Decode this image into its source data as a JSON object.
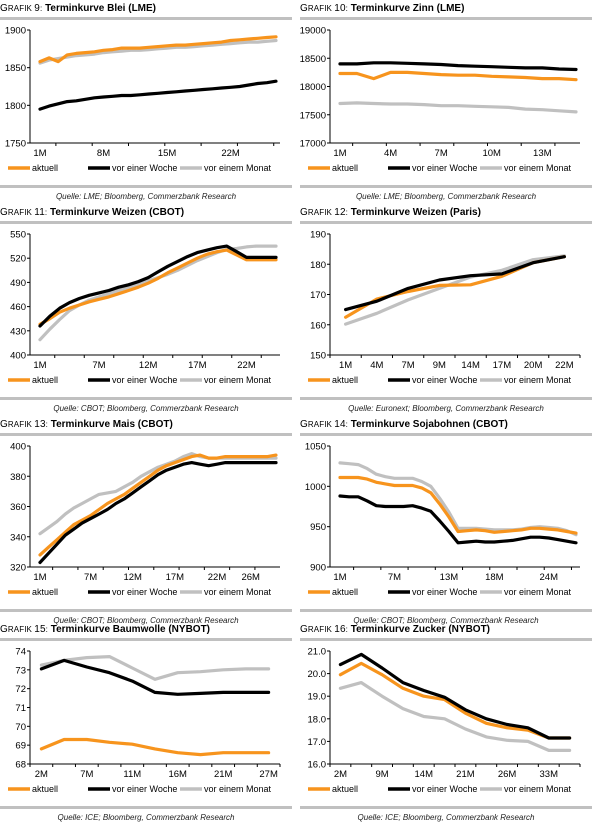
{
  "series_names": [
    "aktuell",
    "vor einer Woche",
    "vor einem Monat"
  ],
  "colors": {
    "aktuell": "#f7941d",
    "woche": "#000000",
    "monat": "#c0c0c0",
    "rule": "#c0c0c0"
  },
  "chart_data": [
    {
      "type": "line",
      "id": "g9",
      "label_prefix": "Grafik",
      "number": "9",
      "title": "Terminkurve Blei (LME)",
      "source": "Quelle: LME; Bloomberg, Commerzbank Research",
      "xlabel": "",
      "ylabel": "",
      "ylim": [
        1750,
        1900
      ],
      "yticks": [
        1750,
        1800,
        1850,
        1900
      ],
      "ytick_labels": [
        "1750",
        "1800",
        "1850",
        "1900"
      ],
      "n_points": 27,
      "xticks": [
        {
          "index": 0,
          "label": "1M"
        },
        {
          "index": 7,
          "label": "8M"
        },
        {
          "index": 14,
          "label": "15M"
        },
        {
          "index": 21,
          "label": "22M"
        }
      ],
      "legend": "bottom",
      "series": [
        {
          "name": "aktuell",
          "values": [
            1858,
            1863,
            1858,
            1867,
            1869,
            1870,
            1871,
            1873,
            1874,
            1876,
            1876,
            1876,
            1877,
            1878,
            1879,
            1880,
            1880,
            1881,
            1882,
            1883,
            1884,
            1886,
            1887,
            1888,
            1889,
            1890,
            1891
          ]
        },
        {
          "name": "vor einer Woche",
          "values": [
            1795,
            1799,
            1802,
            1805,
            1806,
            1808,
            1810,
            1811,
            1812,
            1813,
            1813,
            1814,
            1815,
            1816,
            1817,
            1818,
            1819,
            1820,
            1821,
            1822,
            1823,
            1824,
            1825,
            1827,
            1829,
            1830,
            1832
          ]
        },
        {
          "name": "vor einem Monat",
          "values": [
            1856,
            1860,
            1862,
            1864,
            1866,
            1867,
            1868,
            1870,
            1871,
            1872,
            1873,
            1873,
            1874,
            1875,
            1876,
            1877,
            1877,
            1878,
            1879,
            1880,
            1881,
            1882,
            1883,
            1884,
            1884,
            1885,
            1886
          ]
        }
      ]
    },
    {
      "type": "line",
      "id": "g10",
      "label_prefix": "Grafik",
      "number": "10",
      "title": "Terminkurve Zinn (LME)",
      "source": "Quelle: LME; Bloomberg, Commerzbank Research",
      "xlabel": "",
      "ylabel": "",
      "ylim": [
        17000,
        19000
      ],
      "yticks": [
        17000,
        17500,
        18000,
        18500,
        19000
      ],
      "ytick_labels": [
        "17000",
        "17500",
        "18000",
        "18500",
        "19000"
      ],
      "n_points": 15,
      "xticks": [
        {
          "index": 0,
          "label": "1M"
        },
        {
          "index": 3,
          "label": "4M"
        },
        {
          "index": 6,
          "label": "7M"
        },
        {
          "index": 9,
          "label": "10M"
        },
        {
          "index": 12,
          "label": "13M"
        }
      ],
      "legend": "bottom",
      "series": [
        {
          "name": "aktuell",
          "values": [
            18230,
            18230,
            18140,
            18250,
            18250,
            18230,
            18210,
            18200,
            18200,
            18180,
            18170,
            18160,
            18140,
            18140,
            18120
          ]
        },
        {
          "name": "vor einer Woche",
          "values": [
            18400,
            18400,
            18420,
            18420,
            18410,
            18400,
            18390,
            18370,
            18360,
            18350,
            18340,
            18330,
            18330,
            18310,
            18300
          ]
        },
        {
          "name": "vor einem Monat",
          "values": [
            17700,
            17710,
            17700,
            17690,
            17690,
            17680,
            17660,
            17660,
            17650,
            17640,
            17630,
            17600,
            17590,
            17570,
            17550
          ]
        }
      ]
    },
    {
      "type": "line",
      "id": "g11",
      "label_prefix": "Grafik",
      "number": "11",
      "title": "Terminkurve Weizen (CBOT)",
      "source": "Quelle: CBOT; Bloomberg, Commerzbank Research",
      "xlabel": "",
      "ylabel": "",
      "ylim": [
        400,
        550
      ],
      "yticks": [
        400,
        430,
        460,
        490,
        520,
        550
      ],
      "ytick_labels": [
        "400",
        "430",
        "460",
        "490",
        "520",
        "550"
      ],
      "n_points": 25,
      "xticks": [
        {
          "index": 0,
          "label": "1M"
        },
        {
          "index": 6,
          "label": "7M"
        },
        {
          "index": 11,
          "label": "12M"
        },
        {
          "index": 16,
          "label": "17M"
        },
        {
          "index": 21,
          "label": "22M"
        }
      ],
      "legend": "bottom",
      "series": [
        {
          "name": "aktuell",
          "values": [
            438,
            445,
            453,
            458,
            462,
            466,
            469,
            472,
            476,
            480,
            484,
            489,
            495,
            502,
            508,
            514,
            520,
            525,
            528,
            530,
            524,
            518,
            518,
            518,
            518
          ]
        },
        {
          "name": "vor einer Woche",
          "values": [
            436,
            448,
            458,
            465,
            470,
            474,
            477,
            480,
            484,
            487,
            491,
            496,
            503,
            510,
            516,
            522,
            527,
            530,
            533,
            535,
            528,
            521,
            521,
            521,
            521
          ]
        },
        {
          "name": "vor einem Monat",
          "values": [
            419,
            432,
            444,
            455,
            462,
            468,
            472,
            476,
            480,
            484,
            488,
            492,
            496,
            500,
            505,
            511,
            517,
            522,
            527,
            531,
            532,
            534,
            535,
            535,
            535
          ]
        }
      ]
    },
    {
      "type": "line",
      "id": "g12",
      "label_prefix": "Grafik",
      "number": "12",
      "title": "Terminkurve Weizen (Paris)",
      "source": "Quelle: Euronext; Bloomberg, Commerzbank Research",
      "xlabel": "",
      "ylabel": "",
      "ylim": [
        150,
        190
      ],
      "yticks": [
        150,
        160,
        170,
        180,
        190
      ],
      "ytick_labels": [
        "150",
        "160",
        "170",
        "180",
        "190"
      ],
      "n_points": 8,
      "xticks": [
        {
          "index": 0,
          "label": "1M"
        },
        {
          "index": 1,
          "label": "4M"
        },
        {
          "index": 2,
          "label": "7M"
        },
        {
          "index": 3,
          "label": "9M"
        },
        {
          "index": 4,
          "label": "14M"
        },
        {
          "index": 5,
          "label": "17M"
        },
        {
          "index": 6,
          "label": "20M"
        },
        {
          "index": 7,
          "label": "22M"
        }
      ],
      "legend": "bottom",
      "series": [
        {
          "name": "aktuell",
          "values": [
            162.5,
            168.5,
            171.0,
            173.0,
            173.2,
            176.0,
            180.5,
            182.5
          ]
        },
        {
          "name": "vor einer Woche",
          "values": [
            165.0,
            167.8,
            172.0,
            174.8,
            176.2,
            176.8,
            180.5,
            182.5
          ]
        },
        {
          "name": "vor einem Monat",
          "values": [
            160.2,
            163.8,
            168.2,
            172.0,
            175.8,
            178.0,
            181.5,
            182.8
          ]
        }
      ]
    },
    {
      "type": "line",
      "id": "g13",
      "label_prefix": "Grafik",
      "number": "13",
      "title": "Terminkurve Mais (CBOT)",
      "source": "Quelle: CBOT; Bloomberg, Commerzbank Research",
      "xlabel": "",
      "ylabel": "",
      "ylim": [
        320,
        400
      ],
      "yticks": [
        320,
        340,
        360,
        380,
        400
      ],
      "ytick_labels": [
        "320",
        "340",
        "360",
        "380",
        "400"
      ],
      "n_points": 29,
      "xticks": [
        {
          "index": 0,
          "label": "1M"
        },
        {
          "index": 6,
          "label": "7M"
        },
        {
          "index": 11,
          "label": "12M"
        },
        {
          "index": 16,
          "label": "17M"
        },
        {
          "index": 21,
          "label": "22M"
        },
        {
          "index": 25,
          "label": "26M"
        }
      ],
      "legend": "bottom",
      "series": [
        {
          "name": "aktuell",
          "values": [
            328,
            333,
            338,
            343,
            348,
            351,
            354,
            358,
            362,
            365,
            368,
            372,
            376,
            380,
            384,
            387,
            389,
            391,
            393,
            394,
            392,
            392,
            393,
            393,
            393,
            393,
            393,
            393,
            394
          ]
        },
        {
          "name": "vor einer Woche",
          "values": [
            323,
            329,
            335,
            341,
            345,
            349,
            352,
            355,
            358,
            362,
            365,
            369,
            373,
            377,
            381,
            384,
            386,
            388,
            389,
            388,
            387,
            388,
            389,
            389,
            389,
            389,
            389,
            389,
            389
          ]
        },
        {
          "name": "vor einem Monat",
          "values": [
            342,
            346,
            350,
            355,
            359,
            362,
            365,
            368,
            369,
            370,
            373,
            376,
            380,
            383,
            386,
            388,
            390,
            393,
            395,
            393,
            392,
            392,
            392,
            392,
            392,
            392,
            392,
            392,
            392
          ]
        }
      ]
    },
    {
      "type": "line",
      "id": "g14",
      "label_prefix": "Grafik",
      "number": "14",
      "title": "Terminkurve Sojabohnen (CBOT)",
      "source": "Quelle: CBOT; Bloomberg, Commerzbank Research",
      "xlabel": "",
      "ylabel": "",
      "ylim": [
        900,
        1050
      ],
      "yticks": [
        900,
        950,
        1000,
        1050
      ],
      "ytick_labels": [
        "900",
        "950",
        "1000",
        "1050"
      ],
      "n_points": 27,
      "xticks": [
        {
          "index": 0,
          "label": "1M"
        },
        {
          "index": 6,
          "label": "7M"
        },
        {
          "index": 12,
          "label": "13M"
        },
        {
          "index": 17,
          "label": "18M"
        },
        {
          "index": 23,
          "label": "24M"
        }
      ],
      "legend": "bottom",
      "series": [
        {
          "name": "aktuell",
          "values": [
            1011,
            1011,
            1011,
            1009,
            1005,
            1003,
            1001,
            1001,
            1001,
            998,
            992,
            978,
            962,
            944,
            945,
            946,
            945,
            943,
            944,
            945,
            946,
            948,
            948,
            947,
            946,
            944,
            942
          ]
        },
        {
          "name": "vor einer Woche",
          "values": [
            988,
            987,
            987,
            982,
            976,
            975,
            975,
            975,
            976,
            973,
            969,
            957,
            944,
            930,
            931,
            932,
            931,
            931,
            932,
            933,
            935,
            937,
            937,
            936,
            934,
            932,
            930
          ]
        },
        {
          "name": "vor einem Monat",
          "values": [
            1029,
            1028,
            1027,
            1022,
            1015,
            1012,
            1010,
            1010,
            1010,
            1006,
            1000,
            985,
            968,
            948,
            948,
            948,
            947,
            946,
            946,
            946,
            947,
            949,
            950,
            949,
            948,
            945,
            940
          ]
        }
      ]
    },
    {
      "type": "line",
      "id": "g15",
      "label_prefix": "Grafik",
      "number": "15",
      "title": "Terminkurve Baumwolle (NYBOT)",
      "source": "Quelle: ICE; Bloomberg, Commerzbank Research",
      "xlabel": "",
      "ylabel": "",
      "ylim": [
        68,
        74
      ],
      "yticks": [
        68,
        69,
        70,
        71,
        72,
        73,
        74
      ],
      "ytick_labels": [
        "68",
        "69",
        "70",
        "71",
        "72",
        "73",
        "74"
      ],
      "n_points": 11,
      "xticks": [
        {
          "index": 0,
          "label": "2M"
        },
        {
          "index": 2,
          "label": "7M"
        },
        {
          "index": 4,
          "label": "11M"
        },
        {
          "index": 6,
          "label": "16M"
        },
        {
          "index": 8,
          "label": "21M"
        },
        {
          "index": 10,
          "label": "27M"
        }
      ],
      "legend": "bottom",
      "series": [
        {
          "name": "aktuell",
          "values": [
            68.8,
            69.3,
            69.3,
            69.15,
            69.05,
            68.8,
            68.6,
            68.5,
            68.6,
            68.6,
            68.6
          ]
        },
        {
          "name": "vor einer Woche",
          "values": [
            73.05,
            73.5,
            73.15,
            72.85,
            72.4,
            71.8,
            71.7,
            71.75,
            71.8,
            71.8,
            71.8
          ]
        },
        {
          "name": "vor einem Monat",
          "values": [
            73.25,
            73.5,
            73.65,
            73.7,
            73.1,
            72.5,
            72.85,
            72.9,
            73.0,
            73.05,
            73.05
          ]
        }
      ]
    },
    {
      "type": "line",
      "id": "g16",
      "label_prefix": "Grafik",
      "number": "16",
      "title": "Terminkurve Zucker (NYBOT)",
      "source": "Quelle: ICE; Bloomberg, Commerzbank Research",
      "xlabel": "",
      "ylabel": "",
      "ylim": [
        16.0,
        21.0
      ],
      "yticks": [
        16,
        17,
        18,
        19,
        20,
        21
      ],
      "ytick_labels": [
        "16.0",
        "17.0",
        "18.0",
        "19.0",
        "20.0",
        "21.0"
      ],
      "n_points": 12,
      "xticks": [
        {
          "index": 0,
          "label": "2M"
        },
        {
          "index": 2,
          "label": "9M"
        },
        {
          "index": 4,
          "label": "14M"
        },
        {
          "index": 6,
          "label": "21M"
        },
        {
          "index": 8,
          "label": "26M"
        },
        {
          "index": 10,
          "label": "33M"
        }
      ],
      "legend": "bottom",
      "series": [
        {
          "name": "aktuell",
          "values": [
            19.95,
            20.45,
            19.95,
            19.35,
            19.0,
            18.85,
            18.25,
            17.8,
            17.6,
            17.5,
            17.15,
            17.15
          ]
        },
        {
          "name": "vor einer Woche",
          "values": [
            20.4,
            20.85,
            20.25,
            19.6,
            19.25,
            18.95,
            18.4,
            18.0,
            17.75,
            17.6,
            17.15,
            17.15
          ]
        },
        {
          "name": "vor einem Monat",
          "values": [
            19.35,
            19.6,
            19.0,
            18.45,
            18.1,
            18.0,
            17.55,
            17.2,
            17.05,
            17.0,
            16.6,
            16.6
          ]
        }
      ]
    }
  ]
}
